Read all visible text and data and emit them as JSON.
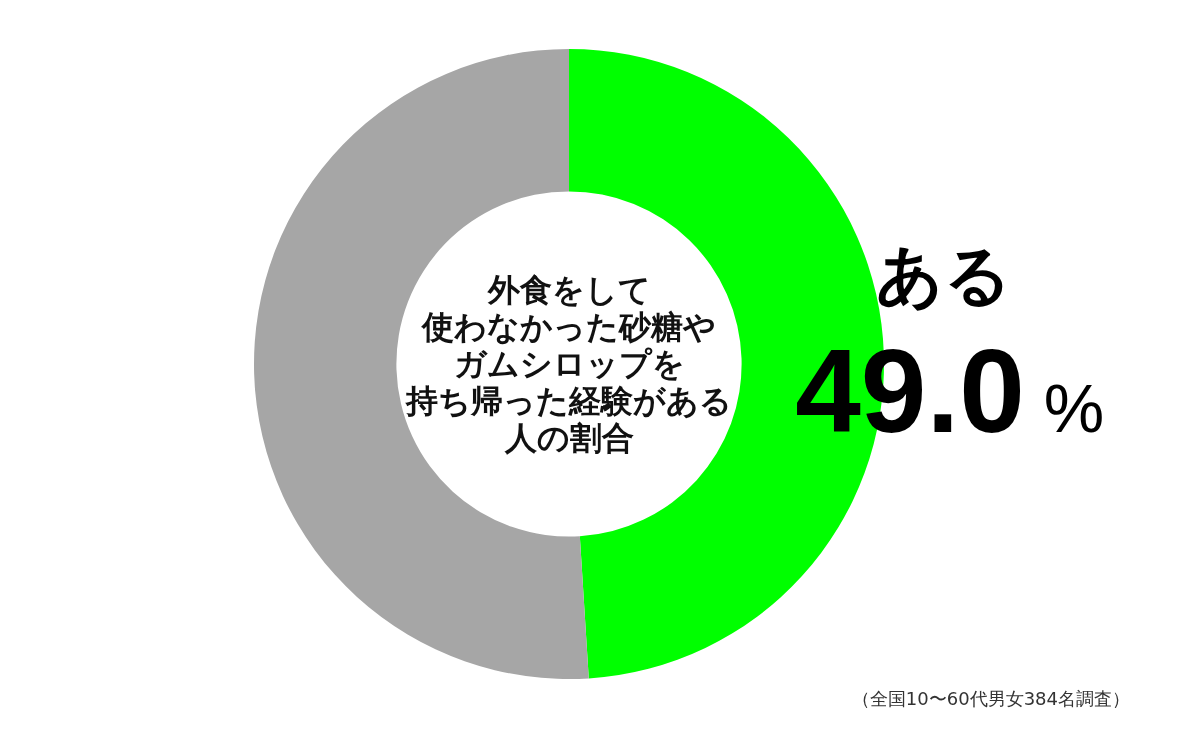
{
  "chart_data": {
    "type": "donut",
    "title": "外食をして使わなかった砂糖やガムシロップを持ち帰った経験がある人の割合",
    "categories": [
      "ある",
      null
    ],
    "values": [
      49.0,
      51.0
    ],
    "colors": [
      "#00ff00",
      "#a6a6a6"
    ],
    "value_labels": [
      "49.0 %",
      null
    ],
    "annotations": [
      "（全国10〜60代男女384名調査）"
    ]
  }
}
